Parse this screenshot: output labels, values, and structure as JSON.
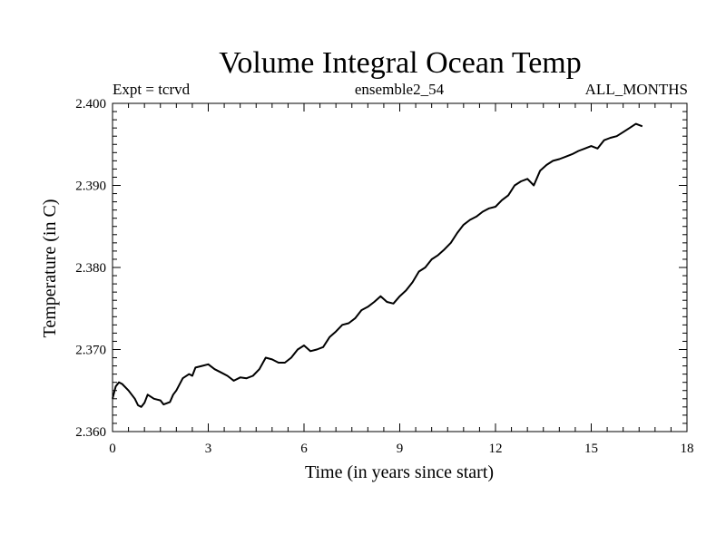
{
  "chart_data": {
    "type": "line",
    "title": "Volume Integral Ocean Temp",
    "subtitle_left": "Expt = tcrvd",
    "subtitle_center": "ensemble2_54",
    "subtitle_right": "ALL_MONTHS",
    "xlabel": "Time (in years since start)",
    "ylabel": "Temperature (in C)",
    "xlim": [
      0,
      18
    ],
    "ylim": [
      2.36,
      2.4
    ],
    "x_ticks": [
      0,
      3,
      6,
      9,
      12,
      15,
      18
    ],
    "x_tick_labels": [
      "0",
      "3",
      "6",
      "9",
      "12",
      "15",
      "18"
    ],
    "y_ticks": [
      2.36,
      2.37,
      2.38,
      2.39,
      2.4
    ],
    "y_tick_labels": [
      "2.360",
      "2.370",
      "2.380",
      "2.390",
      "2.400"
    ],
    "series": [
      {
        "name": "Volume Integral Ocean Temp",
        "color": "#000000",
        "x": [
          0.0,
          0.1,
          0.2,
          0.3,
          0.5,
          0.7,
          0.8,
          0.9,
          1.0,
          1.1,
          1.3,
          1.5,
          1.6,
          1.8,
          1.9,
          2.0,
          2.2,
          2.4,
          2.5,
          2.6,
          2.8,
          3.0,
          3.2,
          3.4,
          3.6,
          3.8,
          4.0,
          4.2,
          4.4,
          4.6,
          4.8,
          5.0,
          5.2,
          5.4,
          5.6,
          5.8,
          6.0,
          6.2,
          6.4,
          6.6,
          6.8,
          7.0,
          7.2,
          7.4,
          7.6,
          7.8,
          8.0,
          8.2,
          8.4,
          8.6,
          8.8,
          9.0,
          9.2,
          9.4,
          9.6,
          9.8,
          10.0,
          10.2,
          10.4,
          10.6,
          10.8,
          11.0,
          11.2,
          11.4,
          11.6,
          11.8,
          12.0,
          12.2,
          12.4,
          12.6,
          12.8,
          13.0,
          13.2,
          13.4,
          13.6,
          13.8,
          14.0,
          14.2,
          14.4,
          14.6,
          14.8,
          15.0,
          15.2,
          15.4,
          15.6,
          15.8,
          16.0,
          16.2,
          16.4,
          16.6
        ],
        "y": [
          2.364,
          2.3655,
          2.366,
          2.3658,
          2.365,
          2.364,
          2.3632,
          2.363,
          2.3635,
          2.3645,
          2.364,
          2.3638,
          2.3633,
          2.3636,
          2.3645,
          2.365,
          2.3665,
          2.367,
          2.3668,
          2.3678,
          2.368,
          2.3682,
          2.3676,
          2.3672,
          2.3668,
          2.3662,
          2.3666,
          2.3665,
          2.3668,
          2.3676,
          2.369,
          2.3688,
          2.3684,
          2.3684,
          2.369,
          2.37,
          2.3705,
          2.3698,
          2.37,
          2.3703,
          2.3715,
          2.3722,
          2.373,
          2.3732,
          2.3738,
          2.3748,
          2.3752,
          2.3758,
          2.3765,
          2.3758,
          2.3756,
          2.3765,
          2.3772,
          2.3782,
          2.3795,
          2.38,
          2.381,
          2.3815,
          2.3822,
          2.383,
          2.3842,
          2.3852,
          2.3858,
          2.3862,
          2.3868,
          2.3872,
          2.3874,
          2.3882,
          2.3888,
          2.39,
          2.3905,
          2.3908,
          2.39,
          2.3918,
          2.3925,
          2.393,
          2.3932,
          2.3935,
          2.3938,
          2.3942,
          2.3945,
          2.3948,
          2.3945,
          2.3955,
          2.3958,
          2.396,
          2.3965,
          2.397,
          2.3975,
          2.3972
        ]
      }
    ]
  }
}
